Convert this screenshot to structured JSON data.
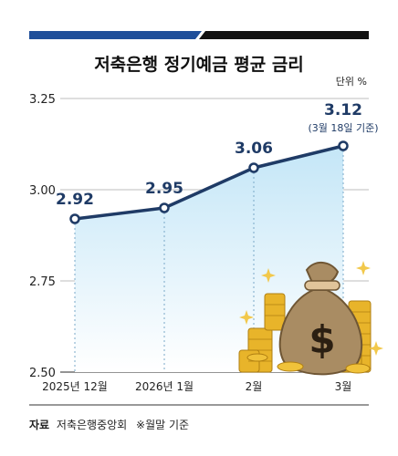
{
  "chart_data": {
    "type": "area",
    "title": "저축은행 정기예금 평균 금리",
    "unit_label": "단위 %",
    "categories": [
      "2025년 12월",
      "2026년 1월",
      "2월",
      "3월"
    ],
    "values": [
      2.92,
      2.95,
      3.06,
      3.12
    ],
    "value_labels": [
      "2.92",
      "2.95",
      "3.06",
      "3.12"
    ],
    "annotation": "(3월 18일 기준)",
    "y_ticks": [
      "3.25",
      "3.00",
      "2.75",
      "2.50"
    ],
    "ylim": [
      2.5,
      3.25
    ],
    "grid": true,
    "colors": {
      "line": "#1f3b66",
      "fill": "#cfe9f7",
      "accent_left": "#1f4f9a",
      "accent_right": "#111111"
    }
  },
  "footer": {
    "source_label": "자료",
    "source_text": "저축은행중앙회",
    "note": "※월말 기준"
  },
  "illustration": {
    "icon": "money-bag-with-coins"
  }
}
